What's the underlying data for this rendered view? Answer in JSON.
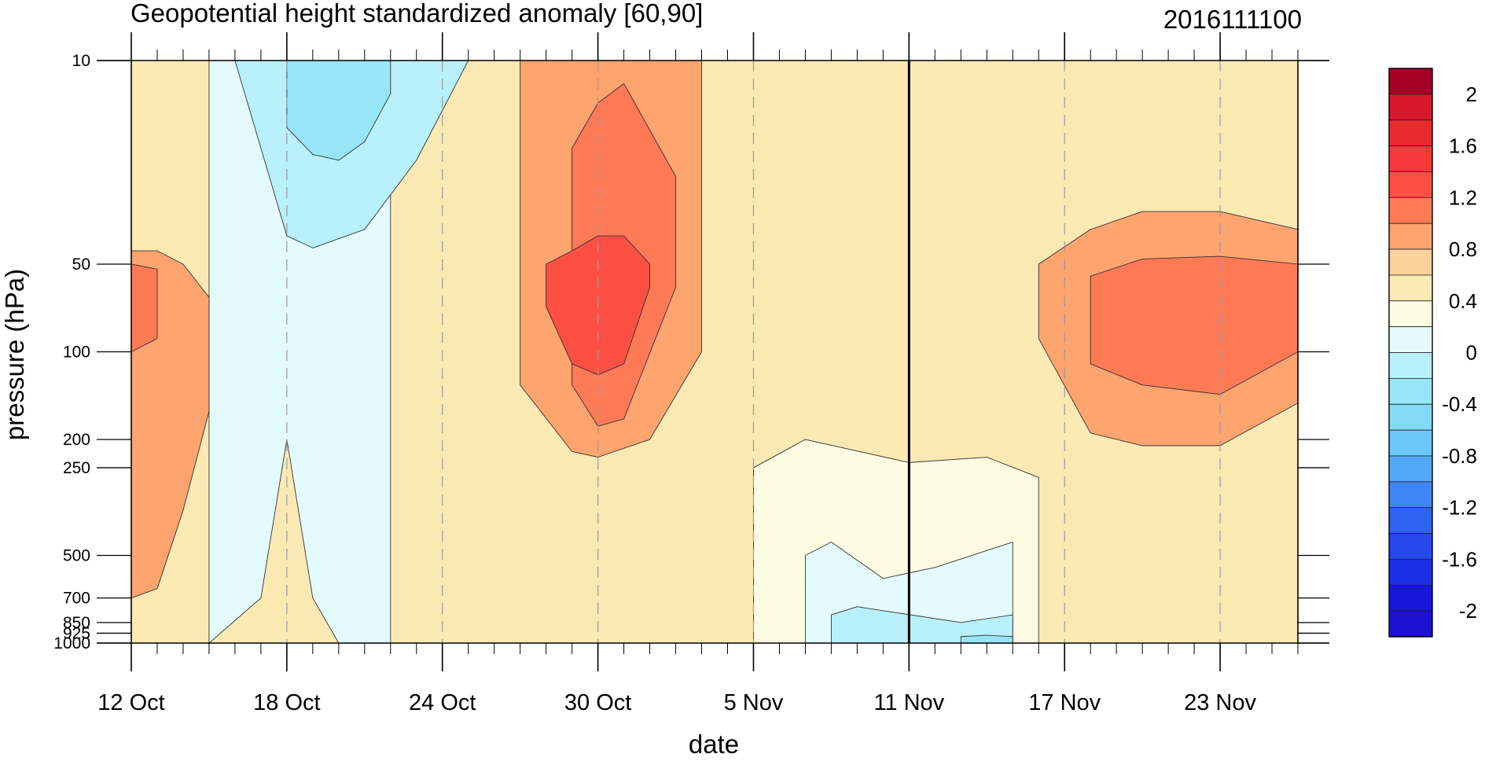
{
  "chart_data": {
    "type": "heatmap",
    "title": "Geopotential height standardized anomaly [60,90]",
    "title_right": "2016111100",
    "xlabel": "date",
    "ylabel": "pressure (hPa)",
    "x_range": [
      "2016-10-12",
      "2016-11-26"
    ],
    "x_ticks": [
      {
        "label": "12 Oct",
        "date": "2016-10-12"
      },
      {
        "label": "18 Oct",
        "date": "2016-10-18"
      },
      {
        "label": "24 Oct",
        "date": "2016-10-24"
      },
      {
        "label": "30 Oct",
        "date": "2016-10-30"
      },
      {
        "label": "5 Nov",
        "date": "2016-11-05"
      },
      {
        "label": "11 Nov",
        "date": "2016-11-11"
      },
      {
        "label": "17 Nov",
        "date": "2016-11-17"
      },
      {
        "label": "23 Nov",
        "date": "2016-11-23"
      }
    ],
    "y_scale": "log",
    "y_inverted": true,
    "y_range": [
      1000,
      10
    ],
    "y_ticks": [
      "10",
      "50",
      "100",
      "200",
      "250",
      "500",
      "700",
      "850",
      "925",
      "1000"
    ],
    "reference_line_date": "2016-11-11",
    "colorbar": {
      "labels": [
        "2",
        "1.6",
        "1.2",
        "0.8",
        "0.4",
        "0",
        "-0.4",
        "-0.8",
        "-1.2",
        "-1.6",
        "-2"
      ],
      "levels": [
        2.2,
        2.0,
        1.8,
        1.6,
        1.4,
        1.2,
        1.0,
        0.8,
        0.6,
        0.4,
        0.2,
        0.0,
        -0.2,
        -0.4,
        -0.6,
        -0.8,
        -1.0,
        -1.2,
        -1.4,
        -1.6,
        -1.8,
        -2.0,
        -2.2
      ],
      "colors": [
        "#a50026",
        "#d7172a",
        "#e82a2f",
        "#f5393a",
        "#fd4f44",
        "#ff7a55",
        "#fda46f",
        "#fbd09a",
        "#fbe9b4",
        "#fdfce3",
        "#e4fbfd",
        "#b8f0fb",
        "#99e5f8",
        "#84daf5",
        "#6bc7f5",
        "#55a8f7",
        "#3f85f4",
        "#2d63f0",
        "#2547ec",
        "#1c2ee4",
        "#1717db",
        "#1f10d5"
      ]
    },
    "regions": [
      {
        "value": 0.4,
        "dates": [
          "2016-10-12",
          "2016-10-23",
          "2016-11-02",
          "2016-11-11",
          "2016-11-26"
        ],
        "p_top": [
          10,
          10,
          10,
          10,
          10
        ],
        "p_bottom": [
          1000,
          1000,
          1000,
          1000,
          1000
        ]
      },
      {
        "value": 0.0,
        "dates": [
          "2016-10-15",
          "2016-10-17",
          "2016-10-18",
          "2016-10-19",
          "2016-10-20",
          "2016-10-22"
        ],
        "p_top": [
          10,
          10,
          10,
          10,
          10,
          10
        ],
        "p_bottom": [
          1000,
          700,
          200,
          700,
          1000,
          1000
        ]
      },
      {
        "value": -0.2,
        "dates": [
          "2016-10-16",
          "2016-10-18",
          "2016-10-19",
          "2016-10-21",
          "2016-10-23",
          "2016-10-25"
        ],
        "p_top": [
          10,
          10,
          10,
          10,
          10,
          10
        ],
        "p_bottom": [
          10,
          40,
          44,
          38,
          22,
          10
        ]
      },
      {
        "value": -0.4,
        "dates": [
          "2016-10-18",
          "2016-10-19",
          "2016-10-20",
          "2016-10-21",
          "2016-10-22"
        ],
        "p_top": [
          10,
          10,
          10,
          10,
          10
        ],
        "p_bottom": [
          17,
          21,
          22,
          19,
          13
        ]
      },
      {
        "value": 0.8,
        "dates": [
          "2016-10-12",
          "2016-10-13",
          "2016-10-14",
          "2016-10-15"
        ],
        "p_top": [
          45,
          45,
          50,
          65
        ],
        "p_bottom": [
          700,
          650,
          350,
          160
        ]
      },
      {
        "value": 1.0,
        "dates": [
          "2016-10-12",
          "2016-10-13"
        ],
        "p_top": [
          50,
          52
        ],
        "p_bottom": [
          100,
          90
        ]
      },
      {
        "value": 0.8,
        "dates": [
          "2016-10-27",
          "2016-10-29",
          "2016-10-30",
          "2016-11-01",
          "2016-11-03"
        ],
        "p_top": [
          10,
          10,
          10,
          10,
          10
        ],
        "p_bottom": [
          130,
          220,
          230,
          200,
          100
        ]
      },
      {
        "value": 1.0,
        "dates": [
          "2016-10-29",
          "2016-10-30",
          "2016-10-31",
          "2016-11-02"
        ],
        "p_top": [
          20,
          14,
          12,
          25
        ],
        "p_bottom": [
          130,
          180,
          170,
          60
        ]
      },
      {
        "value": 1.2,
        "dates": [
          "2016-10-28",
          "2016-10-29",
          "2016-10-30",
          "2016-10-31",
          "2016-11-01"
        ],
        "p_top": [
          50,
          45,
          40,
          40,
          50
        ],
        "p_bottom": [
          70,
          110,
          120,
          110,
          60
        ]
      },
      {
        "value": 0.2,
        "dates": [
          "2016-11-05",
          "2016-11-07",
          "2016-11-11",
          "2016-11-14",
          "2016-11-16"
        ],
        "p_top": [
          250,
          200,
          240,
          230,
          270
        ],
        "p_bottom": [
          1000,
          1000,
          1000,
          1000,
          1000
        ]
      },
      {
        "value": 0.0,
        "dates": [
          "2016-11-07",
          "2016-11-08",
          "2016-11-10",
          "2016-11-12",
          "2016-11-15"
        ],
        "p_top": [
          500,
          450,
          600,
          550,
          450
        ],
        "p_bottom": [
          1000,
          1000,
          1000,
          1000,
          1000
        ]
      },
      {
        "value": -0.2,
        "dates": [
          "2016-11-08",
          "2016-11-09",
          "2016-11-13",
          "2016-11-15"
        ],
        "p_top": [
          800,
          750,
          850,
          800
        ],
        "p_bottom": [
          1000,
          1000,
          1000,
          1000
        ]
      },
      {
        "value": -0.4,
        "dates": [
          "2016-11-13",
          "2016-11-14",
          "2016-11-15"
        ],
        "p_top": [
          950,
          940,
          950
        ],
        "p_bottom": [
          1000,
          1000,
          1000
        ]
      },
      {
        "value": 0.8,
        "dates": [
          "2016-11-16",
          "2016-11-18",
          "2016-11-20",
          "2016-11-23",
          "2016-11-26"
        ],
        "p_top": [
          50,
          38,
          33,
          33,
          38
        ],
        "p_bottom": [
          90,
          190,
          210,
          210,
          150
        ]
      },
      {
        "value": 1.0,
        "dates": [
          "2016-11-18",
          "2016-11-20",
          "2016-11-23",
          "2016-11-26"
        ],
        "p_top": [
          55,
          48,
          47,
          50
        ],
        "p_bottom": [
          110,
          130,
          140,
          100
        ]
      }
    ]
  }
}
